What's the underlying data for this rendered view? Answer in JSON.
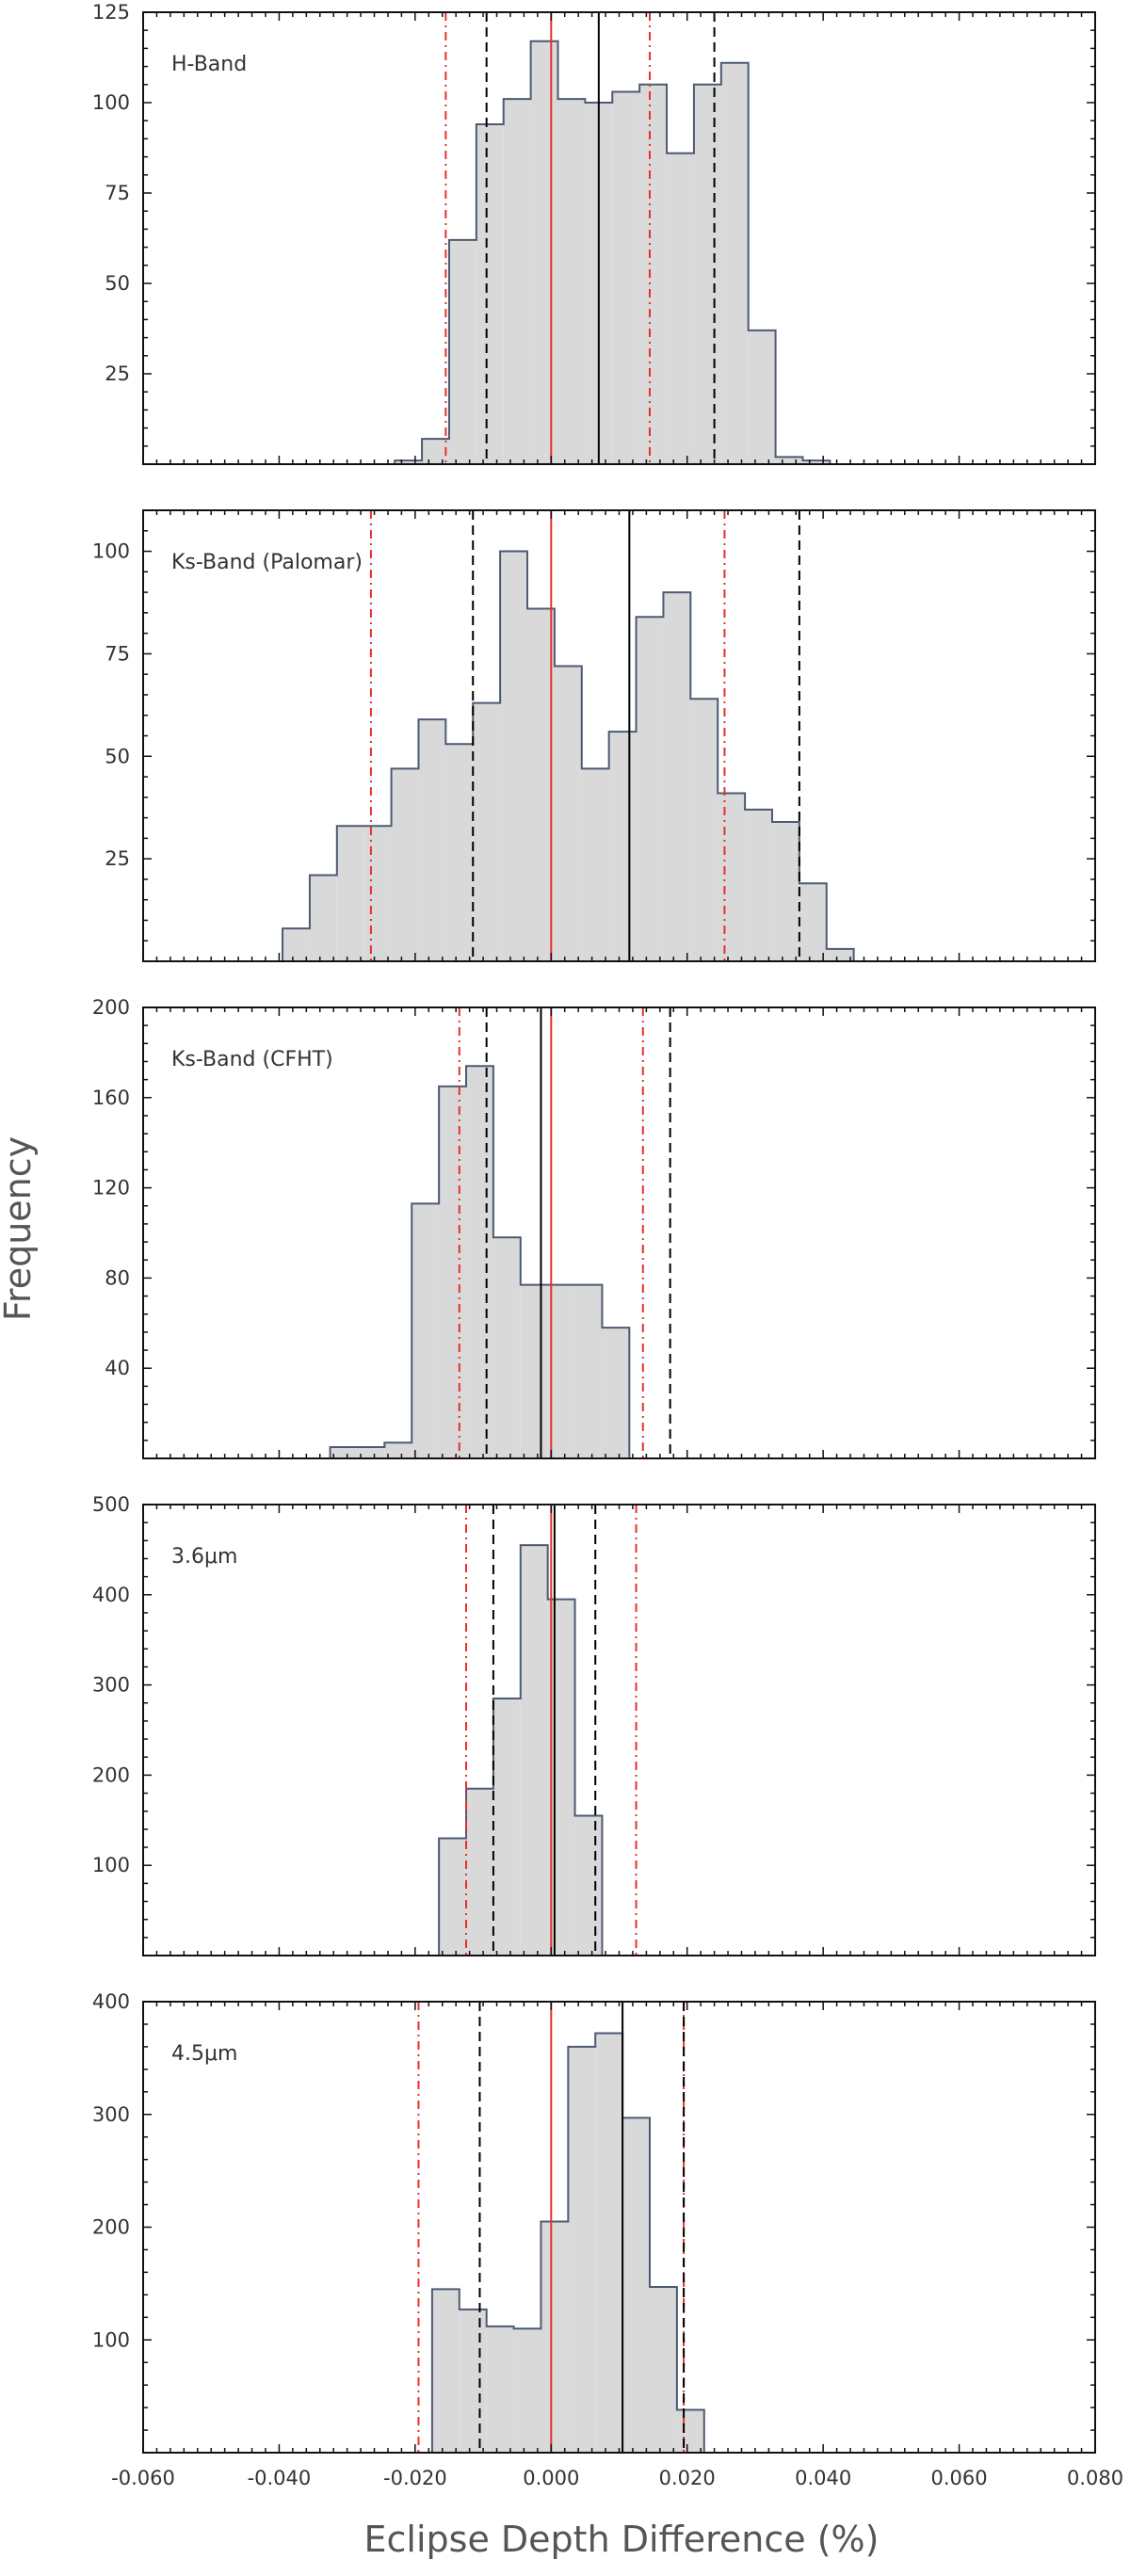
{
  "chart_data": {
    "type": "histogram",
    "xlabel": "Eclipse Depth Difference (%)",
    "ylabel": "Frequency",
    "xlim": [
      -0.06,
      0.08
    ],
    "xticks": [
      "-0.060",
      "-0.040",
      "-0.020",
      "0.000",
      "0.020",
      "0.040",
      "0.060",
      "0.080"
    ],
    "xtick_values": [
      -0.06,
      -0.04,
      -0.02,
      0.0,
      0.02,
      0.04,
      0.06,
      0.08
    ],
    "bin_width": 0.004,
    "line_styles": {
      "zero": "solid red",
      "median": "solid black",
      "one_sigma": "dashed black",
      "two_sigma": "dash-dot red"
    },
    "colors": {
      "fill": "#d9d9d9",
      "edge": "#4d5a73",
      "zero_line": "#e8302b",
      "sigma2_line": "#e8302b",
      "median_line": "#000000",
      "sigma1_line": "#000000"
    },
    "panels": [
      {
        "label": "H-Band",
        "ylim": [
          0,
          125
        ],
        "yticks": [
          25,
          50,
          75,
          100,
          125
        ],
        "bin_start": -0.023,
        "counts": [
          1,
          7,
          62,
          94,
          101,
          117,
          101,
          100,
          103,
          105,
          86,
          105,
          111,
          37,
          2,
          1
        ],
        "median": 0.007,
        "sigma1": [
          -0.0095,
          0.024
        ],
        "sigma2": [
          -0.0155,
          0.0145
        ]
      },
      {
        "label": "Ks-Band (Palomar)",
        "ylim": [
          0,
          110
        ],
        "yticks": [
          25,
          50,
          75,
          100
        ],
        "bin_start": -0.0395,
        "counts": [
          8,
          21,
          33,
          33,
          47,
          59,
          53,
          63,
          100,
          86,
          72,
          47,
          56,
          84,
          90,
          64,
          41,
          37,
          34,
          19,
          3
        ],
        "median": 0.0115,
        "sigma1": [
          -0.0115,
          0.0365
        ],
        "sigma2": [
          -0.0265,
          0.0255
        ]
      },
      {
        "label": "Ks-Band (CFHT)",
        "ylim": [
          0,
          200
        ],
        "yticks": [
          40,
          80,
          120,
          160,
          200
        ],
        "bin_start": -0.0325,
        "counts": [
          5,
          5,
          7,
          113,
          165,
          174,
          98,
          77,
          77,
          77,
          58
        ],
        "median": -0.0015,
        "sigma1": [
          -0.0095,
          0.0175
        ],
        "sigma2": [
          -0.0135,
          0.0135
        ]
      },
      {
        "label": "3.6μm",
        "ylim": [
          0,
          500
        ],
        "yticks": [
          100,
          200,
          300,
          400,
          500
        ],
        "bin_start": -0.0165,
        "counts": [
          130,
          185,
          285,
          455,
          395,
          155
        ],
        "median": 0.0005,
        "sigma1": [
          -0.0085,
          0.0065
        ],
        "sigma2": [
          -0.0125,
          0.0125
        ]
      },
      {
        "label": "4.5μm",
        "ylim": [
          0,
          400
        ],
        "yticks": [
          100,
          200,
          300,
          400
        ],
        "bin_start": -0.0175,
        "counts": [
          145,
          127,
          112,
          110,
          205,
          360,
          372,
          297,
          147,
          38
        ],
        "median": 0.0105,
        "sigma1": [
          -0.0105,
          0.0195
        ],
        "sigma2": [
          -0.0195,
          0.0195
        ]
      }
    ]
  }
}
